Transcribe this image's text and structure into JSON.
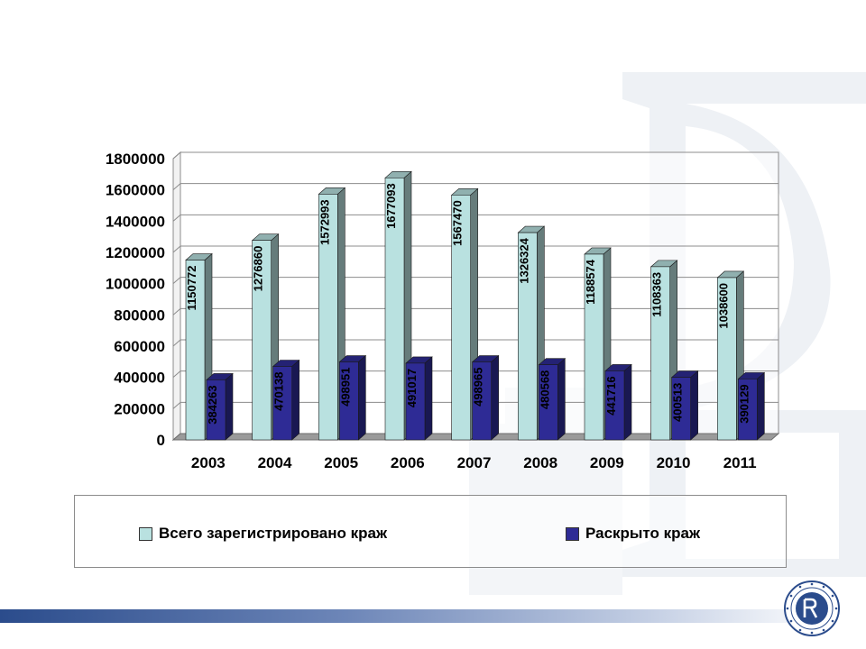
{
  "chart_data": {
    "type": "bar",
    "style": "3d-clustered-column",
    "categories": [
      "2003",
      "2004",
      "2005",
      "2006",
      "2007",
      "2008",
      "2009",
      "2010",
      "2011"
    ],
    "series": [
      {
        "name": "Всего зарегистрировано краж",
        "color": "#b9e1e0",
        "values": [
          1150772,
          1276860,
          1572993,
          1677093,
          1567470,
          1326324,
          1188574,
          1108363,
          1038600
        ],
        "labels": [
          "1150772",
          "1276860",
          "1572993",
          "1677093",
          "1567470",
          "1326324",
          "1188574",
          "1108363",
          "1038600"
        ]
      },
      {
        "name": "Раскрыто краж",
        "color": "#2e2b95",
        "values": [
          384263,
          470138,
          498951,
          491017,
          498965,
          480568,
          441716,
          400513,
          390129
        ],
        "labels": [
          "384263",
          "470138",
          "498951",
          "491017",
          "498965",
          "480568",
          "441716",
          "400513",
          "390129"
        ]
      }
    ],
    "y_ticks": [
      "0",
      "200000",
      "400000",
      "600000",
      "800000",
      "1000000",
      "1200000",
      "1400000",
      "1600000",
      "1800000"
    ],
    "ylim": [
      0,
      1800000
    ],
    "grid": true,
    "legend_position": "bottom",
    "title": "",
    "xlabel": "",
    "ylabel": ""
  }
}
